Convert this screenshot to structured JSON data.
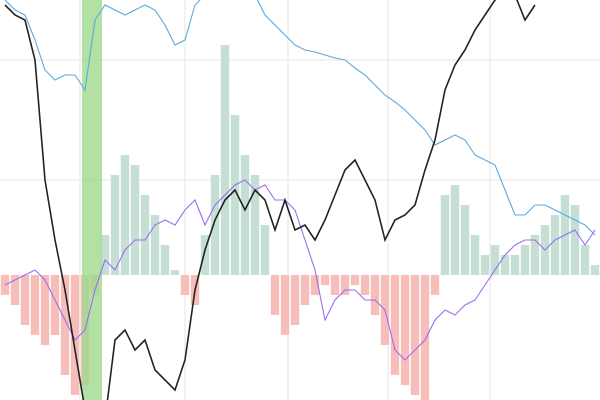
{
  "chart_data": {
    "type": "line",
    "categories": [
      null,
      null,
      null,
      null,
      null,
      null,
      null,
      null,
      null,
      null,
      null,
      null,
      null,
      null,
      null,
      null,
      null,
      null,
      null,
      null,
      null,
      null,
      null,
      null,
      null,
      null,
      null,
      null,
      null,
      null,
      null,
      null,
      null,
      null,
      null,
      null,
      null,
      null,
      null,
      null,
      null,
      null,
      null,
      null,
      null,
      null,
      null,
      null,
      null,
      null,
      null,
      null,
      null,
      null,
      null,
      null,
      null,
      null,
      null,
      null
    ],
    "ylim": [
      -125,
      275
    ],
    "series": [
      {
        "color": "#5aa8e0",
        "values": [
          275,
          265,
          260,
          235,
          205,
          195,
          200,
          200,
          185,
          255,
          270,
          265,
          260,
          265,
          270,
          265,
          250,
          230,
          235,
          270,
          280,
          280,
          280,
          280,
          280,
          280,
          260,
          250,
          240,
          230,
          225,
          223,
          220,
          217,
          215,
          207,
          200,
          190,
          180,
          173,
          165,
          155,
          145,
          130,
          135,
          140,
          135,
          120,
          115,
          110,
          85,
          60,
          60,
          70,
          70,
          65,
          60,
          55,
          50,
          40
        ]
      },
      {
        "color": "#9b6cf0",
        "values": [
          -10,
          -5,
          0,
          5,
          -5,
          -25,
          -45,
          -65,
          -55,
          -15,
          15,
          5,
          25,
          35,
          35,
          50,
          55,
          50,
          65,
          75,
          50,
          70,
          80,
          90,
          95,
          85,
          90,
          75,
          75,
          65,
          35,
          5,
          -45,
          -25,
          -15,
          -15,
          -25,
          -25,
          -35,
          -75,
          -85,
          -75,
          -65,
          -45,
          -35,
          -40,
          -30,
          -25,
          -10,
          5,
          20,
          30,
          35,
          35,
          25,
          35,
          40,
          45,
          30,
          45
        ]
      },
      {
        "color": "#222222",
        "values": [
          270,
          260,
          255,
          215,
          95,
          35,
          -15,
          -75,
          -135,
          -145,
          -145,
          -65,
          -55,
          -75,
          -65,
          -95,
          -105,
          -115,
          -85,
          -15,
          25,
          55,
          75,
          85,
          65,
          85,
          75,
          45,
          75,
          45,
          50,
          35,
          55,
          80,
          105,
          115,
          95,
          75,
          35,
          55,
          60,
          70,
          105,
          135,
          185,
          210,
          225,
          245,
          260,
          275,
          285,
          280,
          255,
          270,
          null,
          null,
          null,
          null,
          null,
          null
        ]
      }
    ],
    "bars": {
      "values": [
        -20,
        -30,
        -50,
        -60,
        -70,
        -60,
        -100,
        -120,
        -110,
        -20,
        40,
        100,
        120,
        110,
        80,
        60,
        30,
        5,
        -20,
        -30,
        40,
        100,
        230,
        160,
        120,
        100,
        50,
        -40,
        -60,
        -50,
        -30,
        -20,
        -10,
        -20,
        -20,
        -10,
        -20,
        -40,
        -70,
        -100,
        -110,
        -120,
        -130,
        -20,
        80,
        90,
        70,
        40,
        20,
        30,
        20,
        20,
        30,
        40,
        50,
        60,
        80,
        70,
        30,
        10
      ],
      "pos_color": "#c6dfd4",
      "neg_color": "#f6bdb9"
    }
  }
}
